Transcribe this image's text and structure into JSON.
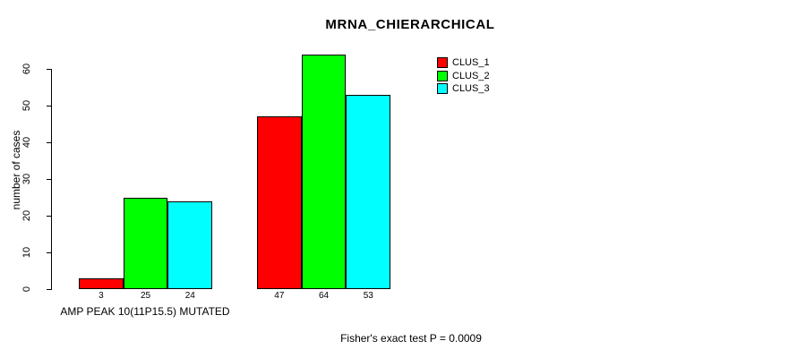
{
  "figure": {
    "background": "#ffffff",
    "text_color": "#000000",
    "axis_color": "#000000"
  },
  "chart_data": {
    "type": "bar",
    "title": "MRNA_CHIERARCHICAL",
    "ylabel": "number of cases",
    "xlabel": "AMP PEAK 10(11P15.5) MUTATED",
    "annotation": "Fisher's exact test P = 0.0009",
    "ylim": [
      0,
      60
    ],
    "yticks": [
      0,
      10,
      20,
      30,
      40,
      50,
      60
    ],
    "grid": false,
    "legend_position": "top-right",
    "bar_border_color": "#000000",
    "bar_value_labels_shown": true,
    "groups": [
      "AMP PEAK 10(11P15.5) MUTATED",
      ""
    ],
    "series": [
      {
        "name": "CLUS_1",
        "color": "#ff0000",
        "values": [
          3,
          47
        ]
      },
      {
        "name": "CLUS_2",
        "color": "#00ff00",
        "values": [
          25,
          64
        ]
      },
      {
        "name": "CLUS_3",
        "color": "#00ffff",
        "values": [
          24,
          53
        ]
      }
    ]
  }
}
